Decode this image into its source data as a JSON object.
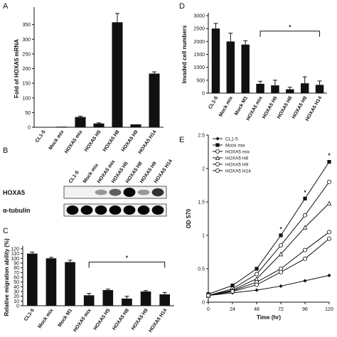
{
  "chart_data": [
    {
      "panel": "A",
      "type": "bar",
      "categories": [
        "CL1-5",
        "Mock mix",
        "HOXA5 mix",
        "HOXA5 H5",
        "HOXA5 H8",
        "HOXA5 H9",
        "HOXA5 H14"
      ],
      "values": [
        1,
        2,
        35,
        13,
        358,
        10,
        183
      ],
      "errors": [
        0,
        0,
        3,
        2,
        30,
        0,
        6
      ],
      "ylim": [
        0,
        400
      ],
      "yticks": [
        0,
        50,
        100,
        150,
        200,
        250,
        300,
        350
      ],
      "ylabel": "Fold of HOXA5 mRNA"
    },
    {
      "panel": "D",
      "type": "bar",
      "categories": [
        "CL1-5",
        "Mock mix",
        "Mock M1",
        "HOXA5 mix",
        "HOXA5 H5",
        "HOXA5 H8",
        "HOXA5 H9",
        "HOXA5 H14"
      ],
      "values": [
        2500,
        2000,
        1880,
        360,
        300,
        150,
        380,
        320
      ],
      "errors": [
        200,
        320,
        150,
        100,
        200,
        80,
        250,
        150
      ],
      "ylim": [
        0,
        3000
      ],
      "yticks": [
        0,
        500,
        1000,
        1500,
        2000,
        2500,
        3000
      ],
      "ylabel": "Invaded cell numbers",
      "annotation": "*"
    },
    {
      "panel": "C",
      "type": "bar",
      "categories": [
        "CL1-5",
        "Mock mix",
        "Mock M1",
        "HOXA5 mix",
        "HOXA5 H5",
        "HOXA5 H8",
        "HOXA5 H9",
        "HOXA5 H14"
      ],
      "values": [
        110,
        100,
        92,
        22,
        33,
        15,
        30,
        24
      ],
      "errors": [
        3,
        2,
        4,
        4,
        2,
        5,
        2,
        4
      ],
      "ylim": [
        0,
        120
      ],
      "yticks": [
        0,
        10,
        20,
        30,
        40,
        50,
        60,
        70,
        80,
        90,
        100,
        110,
        120
      ],
      "ylabel": "Relative migration ability (%)",
      "annotation": "*"
    },
    {
      "panel": "E",
      "type": "line",
      "x": [
        0,
        24,
        48,
        72,
        96,
        120
      ],
      "xlim": [
        0,
        120
      ],
      "ylim": [
        0,
        2.5
      ],
      "yticks": [
        0,
        0.5,
        1,
        1.5,
        2,
        2.5
      ],
      "xlabel": "Time (hr)",
      "ylabel": "OD 570",
      "legend": "top-left",
      "annotation": "*",
      "series": [
        {
          "name": "CL1-5",
          "values": [
            0.1,
            0.14,
            0.18,
            0.24,
            0.32,
            0.4
          ]
        },
        {
          "name": "Mock mix",
          "values": [
            0.12,
            0.25,
            0.5,
            1.0,
            1.55,
            2.1
          ]
        },
        {
          "name": "HOXA5 mix",
          "values": [
            0.1,
            0.2,
            0.42,
            0.85,
            1.3,
            1.8
          ]
        },
        {
          "name": "HOXA5 H8",
          "values": [
            0.1,
            0.18,
            0.35,
            0.72,
            1.12,
            1.48
          ]
        },
        {
          "name": "HOXA5 H9",
          "values": [
            0.1,
            0.17,
            0.3,
            0.5,
            0.78,
            1.05
          ]
        },
        {
          "name": "HOXA5 H14",
          "values": [
            0.1,
            0.16,
            0.26,
            0.45,
            0.65,
            0.95
          ]
        }
      ]
    }
  ],
  "blot": {
    "panel": "B",
    "lanes": [
      "CL1-5",
      "Mock mix",
      "HOXA5 mix",
      "HOXA5 H5",
      "HOXA5 H8",
      "HOXA5 H9",
      "HOXA5 H14"
    ],
    "rows": [
      {
        "label": "HOXA5",
        "intensity": [
          0,
          0,
          0.35,
          0.6,
          1.0,
          0.35,
          0.8
        ]
      },
      {
        "label": "α-tubulin",
        "intensity": [
          1,
          1,
          1,
          1,
          1,
          1,
          1
        ]
      }
    ]
  }
}
